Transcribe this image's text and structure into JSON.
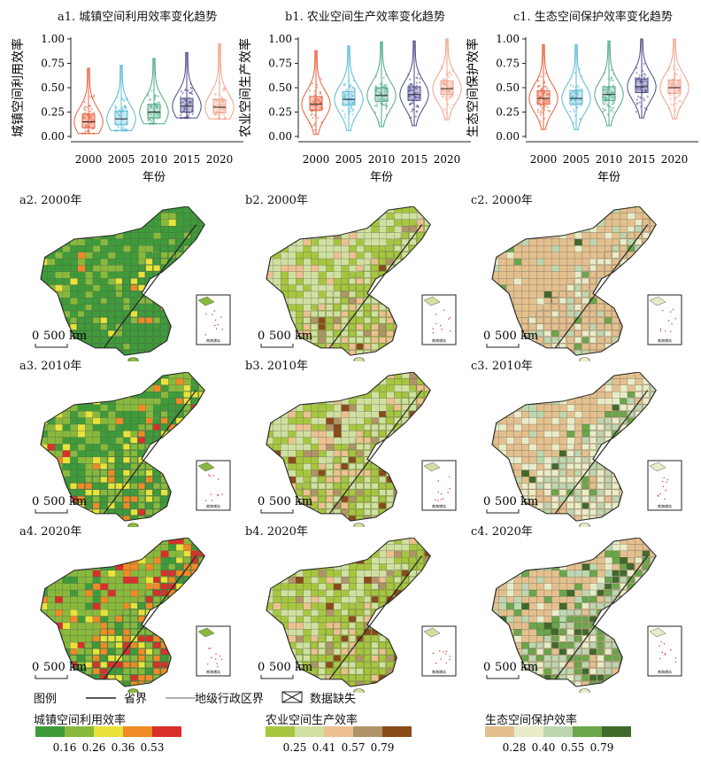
{
  "plots": [
    {
      "panel": "a1",
      "title": "a1. 城镇空间利用效率变化趋势",
      "ylabel": "城镇空间利用效率",
      "colors": [
        "#e8603c",
        "#5bbad5",
        "#4daa84",
        "#4a4a8c",
        "#f2a08a"
      ],
      "violin_levels": [
        0.15,
        0.18,
        0.25,
        0.31,
        0.3
      ]
    },
    {
      "panel": "b1",
      "title": "b1. 农业空间生产效率变化趋势",
      "ylabel": "农业空间生产效率",
      "colors": [
        "#e8603c",
        "#5bbad5",
        "#4daa84",
        "#4a4a8c",
        "#f2a08a"
      ],
      "violin_levels": [
        0.33,
        0.38,
        0.42,
        0.43,
        0.49
      ]
    },
    {
      "panel": "c1",
      "title": "c1. 生态空间保护效率变化趋势",
      "ylabel": "生态空间保护效率",
      "colors": [
        "#e8603c",
        "#5bbad5",
        "#4daa84",
        "#4a4a8c",
        "#f2a08a"
      ],
      "violin_levels": [
        0.39,
        0.39,
        0.43,
        0.51,
        0.5
      ]
    }
  ],
  "yticks": [
    "0.00",
    "0.25",
    "0.50",
    "0.75",
    "1.00"
  ],
  "xticks": [
    "2000",
    "2005",
    "2010",
    "2015",
    "2020"
  ],
  "xlabel": "年份",
  "maps": [
    {
      "label": "a2. 2000年",
      "palette": [
        "#3f9b3a",
        "#88b93c",
        "#e8e23a",
        "#ef8a26",
        "#d9302a"
      ],
      "dist": [
        0.7,
        0.2,
        0.08,
        0.02,
        0.0
      ]
    },
    {
      "label": "b2. 2000年",
      "palette": [
        "#a7c63f",
        "#cfe0a0",
        "#edc092",
        "#b1936a",
        "#8a4b1a"
      ],
      "dist": [
        0.35,
        0.35,
        0.22,
        0.06,
        0.02
      ]
    },
    {
      "label": "c2. 2000年",
      "palette": [
        "#e4c08e",
        "#e8ecc8",
        "#bdd6b0",
        "#6aa64a",
        "#3f6a2c"
      ],
      "dist": [
        0.55,
        0.22,
        0.15,
        0.06,
        0.02
      ]
    },
    {
      "label": "a3. 2010年",
      "palette": [
        "#3f9b3a",
        "#88b93c",
        "#e8e23a",
        "#ef8a26",
        "#d9302a"
      ],
      "dist": [
        0.4,
        0.25,
        0.2,
        0.12,
        0.03
      ]
    },
    {
      "label": "b3. 2010年",
      "palette": [
        "#a7c63f",
        "#cfe0a0",
        "#edc092",
        "#b1936a",
        "#8a4b1a"
      ],
      "dist": [
        0.3,
        0.35,
        0.18,
        0.1,
        0.07
      ]
    },
    {
      "label": "c3. 2010年",
      "palette": [
        "#e4c08e",
        "#e8ecc8",
        "#bdd6b0",
        "#6aa64a",
        "#3f6a2c"
      ],
      "dist": [
        0.15,
        0.45,
        0.25,
        0.1,
        0.05
      ]
    },
    {
      "label": "a4. 2020年",
      "palette": [
        "#3f9b3a",
        "#88b93c",
        "#e8e23a",
        "#ef8a26",
        "#d9302a"
      ],
      "dist": [
        0.15,
        0.3,
        0.15,
        0.2,
        0.2
      ]
    },
    {
      "label": "b4. 2020年",
      "palette": [
        "#a7c63f",
        "#cfe0a0",
        "#edc092",
        "#b1936a",
        "#8a4b1a"
      ],
      "dist": [
        0.45,
        0.25,
        0.1,
        0.1,
        0.1
      ]
    },
    {
      "label": "c4. 2020年",
      "palette": [
        "#e4c08e",
        "#e8ecc8",
        "#bdd6b0",
        "#6aa64a",
        "#3f6a2c"
      ],
      "dist": [
        0.1,
        0.2,
        0.25,
        0.3,
        0.15
      ]
    }
  ],
  "scalebar": {
    "zero": "0",
    "distance": "500 km"
  },
  "inset_caption": "南海诸岛",
  "legend": {
    "title": "图例",
    "province": "省界",
    "prefecture": "地级行政区界",
    "missing": "数据缺失"
  },
  "colorbars": [
    {
      "title": "城镇空间利用效率",
      "colors": [
        "#3f9b3a",
        "#88b93c",
        "#e8e23a",
        "#ef8a26",
        "#d9302a"
      ],
      "ticks": [
        "0.16",
        "0.26",
        "0.36",
        "0.53"
      ]
    },
    {
      "title": "农业空间生产效率",
      "colors": [
        "#a7c63f",
        "#cfe0a0",
        "#edc092",
        "#b1936a",
        "#8a4b1a"
      ],
      "ticks": [
        "0.25",
        "0.41",
        "0.57",
        "0.79"
      ]
    },
    {
      "title": "生态空间保护效率",
      "colors": [
        "#e4c08e",
        "#e8ecc8",
        "#bdd6b0",
        "#6aa64a",
        "#3f6a2c"
      ],
      "ticks": [
        "0.28",
        "0.40",
        "0.55",
        "0.79"
      ]
    }
  ]
}
